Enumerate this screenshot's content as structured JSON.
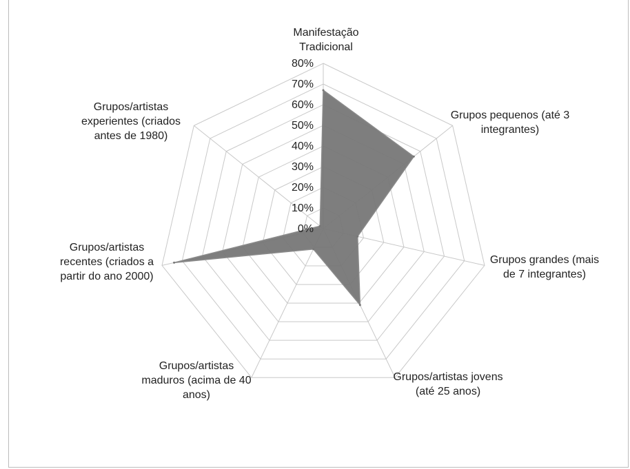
{
  "chart_data": {
    "type": "radar",
    "categories": [
      "Manifestação Tradicional",
      "Grupos pequenos (até 3 integrantes)",
      "Grupos grandes (mais de 7 integrantes)",
      "Grupos/artistas jovens (até 25 anos)",
      "Grupos/artistas maduros (acima de 40 anos)",
      "Grupos/artistas recentes (criados a partir do ano 2000)",
      "Grupos/artistas experientes (criados antes de 1980)"
    ],
    "category_lines": [
      [
        "Manifestação",
        "Tradicional"
      ],
      [
        "Grupos pequenos (até 3",
        "integrantes)"
      ],
      [
        "Grupos grandes (mais",
        "de 7 integrantes)"
      ],
      [
        "Grupos/artistas jovens",
        "(até 25 anos)"
      ],
      [
        "Grupos/artistas",
        "maduros (acima de 40",
        "anos)"
      ],
      [
        "Grupos/artistas",
        "recentes (criados a",
        "partir do ano 2000)"
      ],
      [
        "Grupos/artistas",
        "experientes (criados",
        "antes de 1980)"
      ]
    ],
    "series": [
      {
        "values": [
          67,
          56,
          17,
          41,
          11,
          74,
          2
        ],
        "color": "#777777"
      }
    ],
    "ylim": [
      0,
      80
    ],
    "ticks": [
      "0%",
      "10%",
      "20%",
      "30%",
      "40%",
      "50%",
      "60%",
      "70%",
      "80%"
    ],
    "grid": true,
    "gridColor": "#c8c8c8"
  }
}
